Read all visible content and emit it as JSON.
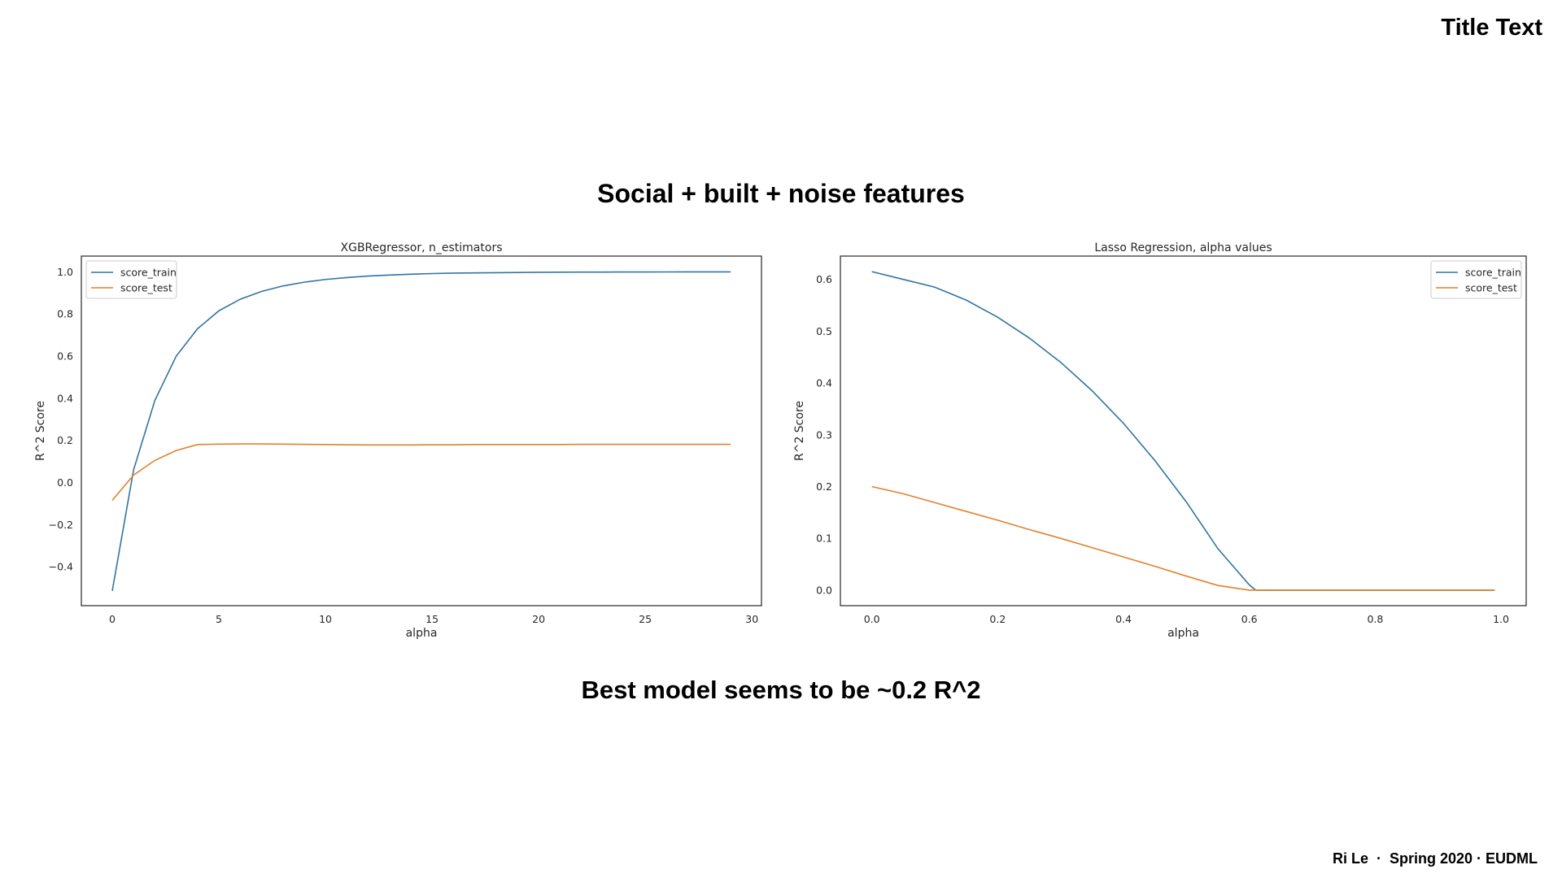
{
  "slide": {
    "title": "Title Text",
    "heading": "Social + built + noise features",
    "conclusion": "Best model seems to be ~0.2 R^2",
    "footer": {
      "author": "Ri Le",
      "separator": "  ·  ",
      "term": "Spring 2020 · EUDML"
    }
  },
  "colors": {
    "score_train": "#3274a1",
    "score_test": "#e1812c"
  },
  "chart_data": [
    {
      "type": "line",
      "title": "XGBRegressor, n_estimators",
      "xlabel": "alpha",
      "ylabel": "R^2 Score",
      "xlim": [
        -1.45,
        30.45
      ],
      "ylim": [
        -0.585,
        1.075
      ],
      "xticks": [
        0,
        5,
        10,
        15,
        20,
        25,
        30
      ],
      "yticks": [
        -0.4,
        -0.2,
        0.0,
        0.2,
        0.4,
        0.6,
        0.8,
        1.0
      ],
      "xtick_labels": [
        "0",
        "5",
        "10",
        "15",
        "20",
        "25",
        "30"
      ],
      "ytick_labels": [
        "−0.4",
        "−0.2",
        "0.0",
        "0.2",
        "0.4",
        "0.6",
        "0.8",
        "1.0"
      ],
      "legend": "upper left",
      "grid": false,
      "x": [
        0,
        1,
        2,
        3,
        4,
        5,
        6,
        7,
        8,
        9,
        10,
        11,
        12,
        13,
        14,
        15,
        16,
        17,
        18,
        19,
        20,
        21,
        22,
        23,
        24,
        25,
        26,
        27,
        28,
        29
      ],
      "series": [
        {
          "name": "score_train",
          "values": [
            -0.515,
            0.06,
            0.39,
            0.6,
            0.73,
            0.815,
            0.87,
            0.907,
            0.933,
            0.951,
            0.964,
            0.973,
            0.98,
            0.985,
            0.989,
            0.992,
            0.994,
            0.995,
            0.996,
            0.997,
            0.998,
            0.9985,
            0.999,
            0.999,
            0.9995,
            0.9995,
            0.9997,
            0.9998,
            0.9999,
            1.0
          ]
        },
        {
          "name": "score_test",
          "values": [
            -0.085,
            0.035,
            0.105,
            0.152,
            0.18,
            0.182,
            0.183,
            0.183,
            0.182,
            0.181,
            0.18,
            0.179,
            0.178,
            0.178,
            0.178,
            0.179,
            0.179,
            0.18,
            0.18,
            0.18,
            0.18,
            0.18,
            0.181,
            0.181,
            0.181,
            0.181,
            0.181,
            0.181,
            0.181,
            0.181
          ]
        }
      ]
    },
    {
      "type": "line",
      "title": "Lasso Regression, alpha values",
      "xlabel": "alpha",
      "ylabel": "R^2 Score",
      "xlim": [
        -0.05,
        1.04
      ],
      "ylim": [
        -0.03,
        0.645
      ],
      "xticks": [
        0.0,
        0.2,
        0.4,
        0.6,
        0.8,
        1.0
      ],
      "yticks": [
        0.0,
        0.1,
        0.2,
        0.3,
        0.4,
        0.5,
        0.6
      ],
      "xtick_labels": [
        "0.0",
        "0.2",
        "0.4",
        "0.6",
        "0.8",
        "1.0"
      ],
      "ytick_labels": [
        "0.0",
        "0.1",
        "0.2",
        "0.3",
        "0.4",
        "0.5",
        "0.6"
      ],
      "legend": "upper right",
      "grid": false,
      "x": [
        0.0,
        0.05,
        0.1,
        0.15,
        0.2,
        0.25,
        0.3,
        0.35,
        0.4,
        0.45,
        0.5,
        0.55,
        0.6,
        0.61,
        0.65,
        0.7,
        0.75,
        0.8,
        0.85,
        0.9,
        0.95,
        0.99
      ],
      "series": [
        {
          "name": "score_train",
          "values": [
            0.615,
            0.6,
            0.585,
            0.56,
            0.527,
            0.487,
            0.44,
            0.385,
            0.322,
            0.25,
            0.17,
            0.08,
            0.01,
            0.0,
            0.0,
            0.0,
            0.0,
            0.0,
            0.0,
            0.0,
            0.0,
            0.0
          ]
        },
        {
          "name": "score_test",
          "values": [
            0.2,
            0.186,
            0.169,
            0.152,
            0.135,
            0.117,
            0.1,
            0.082,
            0.064,
            0.046,
            0.027,
            0.009,
            0.0,
            0.0,
            0.0,
            0.0,
            0.0,
            0.0,
            0.0,
            0.0,
            0.0,
            0.0
          ]
        }
      ]
    }
  ]
}
